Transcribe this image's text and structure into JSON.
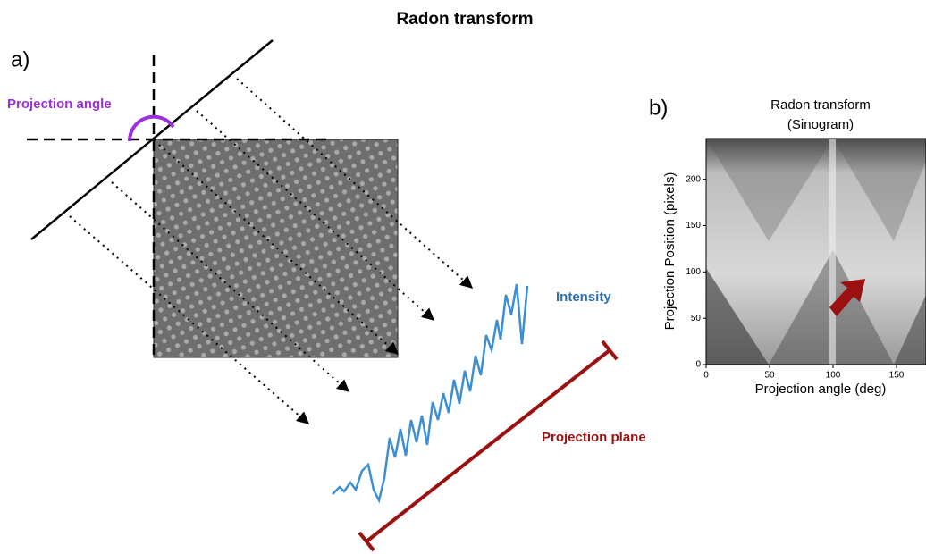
{
  "title": "Radon transform",
  "panel_a": {
    "label": "a)",
    "projection_angle": "Projection angle",
    "intensity": "Intensity",
    "projection_plane": "Projection plane"
  },
  "panel_b": {
    "label": "b)",
    "title": [
      "Radon transform",
      "(Sinogram)"
    ],
    "xlabel": "Projection angle (deg)",
    "ylabel": "Projection Position (pixels)",
    "xlim": [
      0,
      180
    ],
    "ylim": [
      0,
      244
    ],
    "xticks": [
      0,
      50,
      100,
      150
    ],
    "yticks": [
      0,
      50,
      100,
      150,
      200
    ]
  }
}
